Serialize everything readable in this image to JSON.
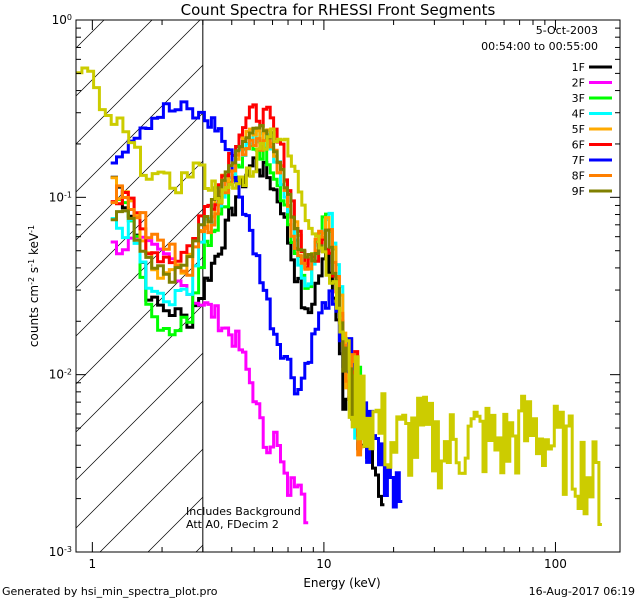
{
  "chart_data": {
    "type": "line",
    "title": "Count Spectra for RHESSI Front Segments",
    "xlabel": "Energy (keV)",
    "ylabel": "counts cm-2 s-1 keV-1",
    "ylabel_parts": [
      "counts cm",
      "-2",
      " s",
      "-1",
      " keV",
      "-1"
    ],
    "x_scale": "log",
    "y_scale": "log",
    "xlim": [
      0.85,
      190
    ],
    "ylim": [
      0.001,
      1
    ],
    "x_ticks": [
      {
        "value": 1,
        "label": "1"
      },
      {
        "value": 10,
        "label": "10"
      },
      {
        "value": 100,
        "label": "100"
      }
    ],
    "y_ticks": [
      {
        "value": 1,
        "mant": "10",
        "exp": "0"
      },
      {
        "value": 0.1,
        "mant": "10",
        "exp": "-1"
      },
      {
        "value": 0.01,
        "mant": "10",
        "exp": "-2"
      },
      {
        "value": 0.001,
        "mant": "10",
        "exp": "-3"
      }
    ],
    "hatched_region": [
      0.85,
      3
    ],
    "date": "5-Oct-2003",
    "time_range": "00:54:00 to 00:55:00",
    "annotations": [
      "Includes Background",
      "Att A0, FDecim 2"
    ],
    "series": [
      {
        "name": "1F",
        "color": "#000000",
        "values": [
          [
            1.2,
            0.14
          ],
          [
            1.5,
            0.08
          ],
          [
            1.8,
            0.025
          ],
          [
            2.2,
            0.023
          ],
          [
            2.6,
            0.02
          ],
          [
            3.0,
            0.03
          ],
          [
            3.4,
            0.045
          ],
          [
            3.8,
            0.065
          ],
          [
            4.3,
            0.11
          ],
          [
            5.0,
            0.16
          ],
          [
            5.8,
            0.13
          ],
          [
            6.6,
            0.09
          ],
          [
            7.5,
            0.04
          ],
          [
            8.5,
            0.02
          ],
          [
            9.5,
            0.035
          ],
          [
            10.5,
            0.05
          ],
          [
            11.5,
            0.02
          ],
          [
            13,
            0.006
          ],
          [
            15,
            0.004
          ],
          [
            18,
            0.0025
          ]
        ]
      },
      {
        "name": "2F",
        "color": "#ff00ff",
        "values": [
          [
            1.2,
            0.052
          ],
          [
            1.5,
            0.055
          ],
          [
            1.8,
            0.05
          ],
          [
            2.2,
            0.045
          ],
          [
            2.6,
            0.03
          ],
          [
            3.0,
            0.025
          ],
          [
            3.4,
            0.022
          ],
          [
            3.8,
            0.018
          ],
          [
            4.3,
            0.015
          ],
          [
            5.0,
            0.008
          ],
          [
            5.6,
            0.004
          ],
          [
            6.2,
            0.0045
          ],
          [
            7.0,
            0.0022
          ],
          [
            7.5,
            0.0025
          ],
          [
            8.0,
            0.0028
          ],
          [
            8.5,
            0.0015
          ]
        ]
      },
      {
        "name": "3F",
        "color": "#00ff00",
        "values": [
          [
            1.2,
            0.095
          ],
          [
            1.5,
            0.08
          ],
          [
            1.8,
            0.022
          ],
          [
            2.2,
            0.018
          ],
          [
            2.6,
            0.02
          ],
          [
            3.0,
            0.05
          ],
          [
            3.4,
            0.07
          ],
          [
            3.8,
            0.1
          ],
          [
            4.3,
            0.15
          ],
          [
            5.0,
            0.2
          ],
          [
            5.8,
            0.17
          ],
          [
            6.6,
            0.11
          ],
          [
            7.5,
            0.05
          ],
          [
            8.5,
            0.03
          ],
          [
            9.5,
            0.06
          ],
          [
            10.5,
            0.08
          ],
          [
            11.5,
            0.03
          ],
          [
            13,
            0.009
          ],
          [
            15,
            0.005
          ]
        ]
      },
      {
        "name": "4F",
        "color": "#00ffff",
        "values": [
          [
            1.2,
            0.07
          ],
          [
            1.5,
            0.065
          ],
          [
            1.8,
            0.028
          ],
          [
            2.2,
            0.025
          ],
          [
            2.6,
            0.03
          ],
          [
            3.0,
            0.06
          ],
          [
            3.4,
            0.085
          ],
          [
            3.8,
            0.12
          ],
          [
            4.3,
            0.18
          ],
          [
            5.0,
            0.23
          ],
          [
            5.8,
            0.2
          ],
          [
            6.6,
            0.13
          ],
          [
            7.5,
            0.06
          ],
          [
            8.5,
            0.03
          ],
          [
            9.5,
            0.06
          ],
          [
            10.5,
            0.09
          ],
          [
            11.5,
            0.04
          ],
          [
            13,
            0.01
          ],
          [
            15,
            0.005
          ]
        ]
      },
      {
        "name": "5F",
        "color": "#ffaa00",
        "values": [
          [
            1.2,
            0.12
          ],
          [
            1.5,
            0.1
          ],
          [
            1.8,
            0.04
          ],
          [
            2.2,
            0.035
          ],
          [
            2.6,
            0.04
          ],
          [
            3.0,
            0.07
          ],
          [
            3.4,
            0.09
          ],
          [
            3.8,
            0.13
          ],
          [
            4.3,
            0.19
          ],
          [
            5.0,
            0.24
          ],
          [
            5.8,
            0.21
          ],
          [
            6.6,
            0.15
          ],
          [
            7.5,
            0.07
          ],
          [
            8.5,
            0.04
          ],
          [
            9.5,
            0.06
          ],
          [
            10.5,
            0.07
          ],
          [
            11.5,
            0.035
          ],
          [
            13,
            0.01
          ],
          [
            15,
            0.006
          ]
        ]
      },
      {
        "name": "6F",
        "color": "#ff0000",
        "values": [
          [
            1.2,
            0.1
          ],
          [
            1.5,
            0.09
          ],
          [
            1.8,
            0.05
          ],
          [
            2.2,
            0.045
          ],
          [
            2.6,
            0.05
          ],
          [
            3.0,
            0.08
          ],
          [
            3.4,
            0.1
          ],
          [
            3.8,
            0.15
          ],
          [
            4.3,
            0.23
          ],
          [
            5.0,
            0.3
          ],
          [
            5.8,
            0.28
          ],
          [
            6.6,
            0.18
          ],
          [
            7.5,
            0.08
          ],
          [
            8.5,
            0.04
          ],
          [
            9.5,
            0.05
          ],
          [
            10.5,
            0.06
          ],
          [
            11.5,
            0.03
          ],
          [
            13,
            0.01
          ],
          [
            15,
            0.006
          ]
        ]
      },
      {
        "name": "7F",
        "color": "#0000ff",
        "values": [
          [
            1.2,
            0.17
          ],
          [
            1.4,
            0.2
          ],
          [
            1.6,
            0.25
          ],
          [
            1.8,
            0.28
          ],
          [
            2.1,
            0.31
          ],
          [
            2.5,
            0.31
          ],
          [
            3.0,
            0.28
          ],
          [
            3.5,
            0.25
          ],
          [
            4.0,
            0.16
          ],
          [
            4.6,
            0.08
          ],
          [
            5.3,
            0.04
          ],
          [
            6.1,
            0.018
          ],
          [
            7.0,
            0.012
          ],
          [
            7.8,
            0.008
          ],
          [
            8.5,
            0.012
          ],
          [
            9.5,
            0.02
          ],
          [
            10.5,
            0.028
          ],
          [
            11.5,
            0.02
          ],
          [
            13,
            0.01
          ],
          [
            15,
            0.005
          ],
          [
            18,
            0.0035
          ],
          [
            22,
            0.0025
          ]
        ]
      },
      {
        "name": "8F",
        "color": "#ff7f00",
        "values": [
          [
            1.2,
            0.11
          ],
          [
            1.5,
            0.09
          ],
          [
            1.8,
            0.06
          ],
          [
            2.2,
            0.05
          ],
          [
            2.6,
            0.04
          ],
          [
            3.0,
            0.06
          ],
          [
            3.4,
            0.085
          ],
          [
            3.8,
            0.12
          ],
          [
            4.3,
            0.18
          ],
          [
            5.0,
            0.22
          ],
          [
            5.8,
            0.2
          ],
          [
            6.6,
            0.13
          ],
          [
            7.5,
            0.06
          ],
          [
            8.5,
            0.035
          ],
          [
            9.5,
            0.055
          ],
          [
            10.5,
            0.075
          ],
          [
            11.5,
            0.032
          ],
          [
            13,
            0.009
          ],
          [
            15,
            0.005
          ]
        ]
      },
      {
        "name": "9F",
        "color": "#808000",
        "values": [
          [
            1.2,
            0.08
          ],
          [
            1.5,
            0.07
          ],
          [
            1.8,
            0.04
          ],
          [
            2.2,
            0.035
          ],
          [
            2.6,
            0.04
          ],
          [
            3.0,
            0.07
          ],
          [
            3.4,
            0.095
          ],
          [
            3.8,
            0.14
          ],
          [
            4.3,
            0.2
          ],
          [
            5.0,
            0.27
          ],
          [
            5.8,
            0.24
          ],
          [
            6.6,
            0.16
          ],
          [
            7.5,
            0.07
          ],
          [
            8.5,
            0.04
          ],
          [
            9.5,
            0.05
          ],
          [
            10.5,
            0.06
          ],
          [
            11.5,
            0.03
          ],
          [
            13,
            0.009
          ],
          [
            15,
            0.005
          ]
        ]
      },
      {
        "name": "",
        "color": "#cccc00",
        "values": [
          [
            0.85,
            0.53
          ],
          [
            1.0,
            0.5
          ],
          [
            1.1,
            0.28
          ],
          [
            1.3,
            0.26
          ],
          [
            1.6,
            0.16
          ],
          [
            2.0,
            0.12
          ],
          [
            2.4,
            0.12
          ],
          [
            2.8,
            0.15
          ],
          [
            3.2,
            0.12
          ],
          [
            3.7,
            0.1
          ],
          [
            4.3,
            0.12
          ],
          [
            5.0,
            0.15
          ],
          [
            5.8,
            0.24
          ],
          [
            6.6,
            0.22
          ],
          [
            7.5,
            0.14
          ],
          [
            8.5,
            0.08
          ],
          [
            9.5,
            0.06
          ],
          [
            10.5,
            0.04
          ],
          [
            11.5,
            0.025
          ],
          [
            13,
            0.008
          ],
          [
            16,
            0.006
          ],
          [
            20,
            0.004
          ],
          [
            26,
            0.0045
          ],
          [
            34,
            0.0038
          ],
          [
            45,
            0.0045
          ],
          [
            60,
            0.004
          ],
          [
            80,
            0.005
          ],
          [
            100,
            0.004
          ],
          [
            130,
            0.003
          ],
          [
            160,
            0.0022
          ]
        ]
      }
    ]
  },
  "footer": {
    "generated": "Generated by hsi_min_spectra_plot.pro",
    "timestamp": "16-Aug-2017 06:19"
  }
}
